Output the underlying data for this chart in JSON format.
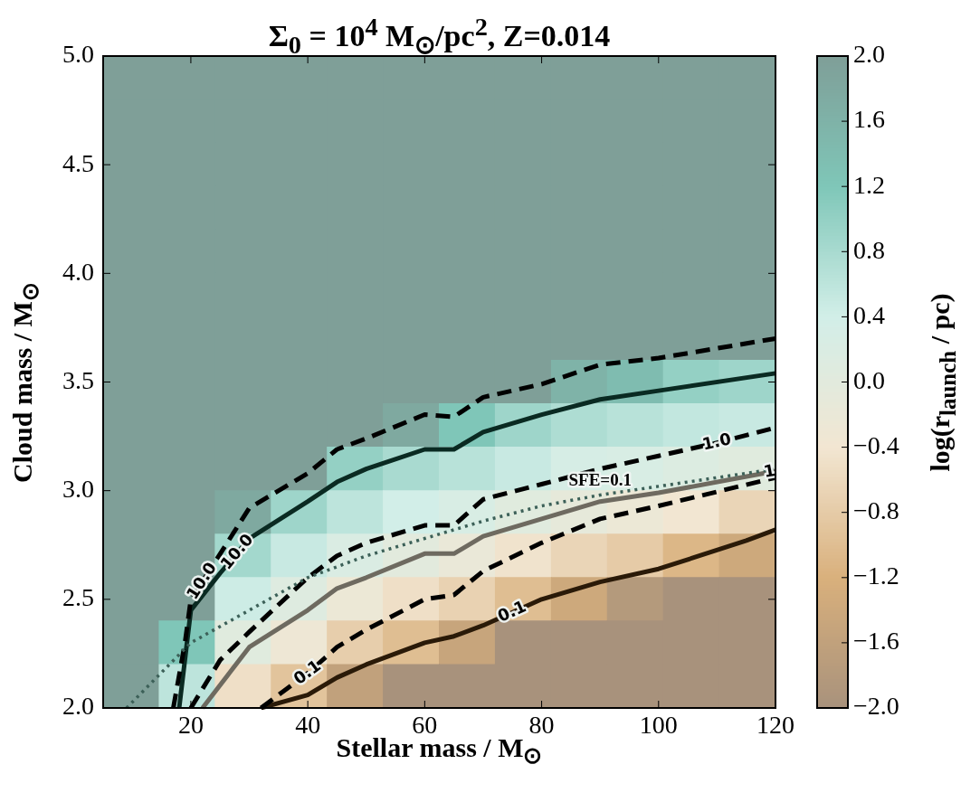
{
  "chart_data": {
    "type": "heatmap",
    "title": "Σ$_{0}$ = 10$^{4}$ M$_{⊙}$/pc$^{2}$, Z=0.014",
    "xlabel": "Stellar mass / M$_{⊙}$",
    "ylabel": "Cloud mass / M$_{⊙}$",
    "clabel": "log(r$_{launch}$ / pc)",
    "xlim": [
      5,
      120
    ],
    "xticks": [
      20,
      40,
      60,
      80,
      100,
      120
    ],
    "ylim": [
      2,
      5
    ],
    "yticks": [
      {
        "value": 2,
        "label": "2.0"
      },
      {
        "value": 2.5,
        "label": "2.5"
      },
      {
        "value": 3,
        "label": "3.0"
      },
      {
        "value": 3.5,
        "label": "3.5"
      },
      {
        "value": 4,
        "label": "4.0"
      },
      {
        "value": 4.5,
        "label": "4.5"
      },
      {
        "value": 5,
        "label": "5.0"
      }
    ],
    "clim": [
      -2,
      2
    ],
    "cticks": [
      {
        "value": -2,
        "label": "−2.0"
      },
      {
        "value": -1.6,
        "label": "−1.6"
      },
      {
        "value": -1.2,
        "label": "−1.2"
      },
      {
        "value": -0.8,
        "label": "−0.8"
      },
      {
        "value": -0.4,
        "label": "−0.4"
      },
      {
        "value": 0,
        "label": "0.0"
      },
      {
        "value": 0.4,
        "label": "0.4"
      },
      {
        "value": 0.8,
        "label": "0.8"
      },
      {
        "value": 1.2,
        "label": "1.2"
      },
      {
        "value": 1.6,
        "label": "1.6"
      },
      {
        "value": 2,
        "label": "2.0"
      }
    ],
    "colors": [
      "#a8927c",
      "#d9b07c",
      "#f2e6d2",
      "#d2eee8",
      "#7fc6b8",
      "#7f9f98"
    ],
    "marker": "none",
    "cells": [
      [
        2,
        2,
        2,
        2,
        2,
        2,
        2,
        2,
        2,
        2,
        2,
        2
      ],
      [
        2,
        2,
        2,
        2,
        2,
        2,
        2,
        2,
        2,
        2,
        2,
        2
      ],
      [
        2,
        2,
        2,
        2,
        2,
        2,
        2,
        2,
        2,
        2,
        2,
        2
      ],
      [
        2,
        2,
        2,
        2,
        2,
        2,
        2,
        2,
        2,
        2,
        2,
        2
      ],
      [
        2,
        2,
        2,
        2,
        2,
        2,
        2,
        2,
        2,
        2,
        2,
        2
      ],
      [
        2,
        2,
        2,
        2,
        2,
        2,
        2,
        2,
        2,
        2,
        2,
        2
      ],
      [
        2,
        2,
        2,
        2,
        2,
        2,
        2,
        2,
        2,
        2,
        2,
        2
      ],
      [
        2,
        2,
        2,
        2,
        2,
        2,
        2,
        2,
        1.6,
        1.4,
        1.0,
        0.9
      ],
      [
        2,
        2,
        2,
        2,
        2,
        1.8,
        1.2,
        0.9,
        0.75,
        0.65,
        0.55,
        0.5
      ],
      [
        2,
        2,
        2,
        2,
        1.0,
        0.8,
        0.65,
        0.5,
        0.3,
        0.25,
        0.15,
        0.05
      ],
      [
        2,
        2,
        1.8,
        0.9,
        0.6,
        0.4,
        0.25,
        0.05,
        -0.1,
        -0.25,
        -0.4,
        -0.65
      ],
      [
        2,
        2,
        0.85,
        0.5,
        0.2,
        0,
        -0.2,
        -0.45,
        -0.65,
        -0.8,
        -1.1,
        -1.4
      ],
      [
        2,
        2,
        0.45,
        0.1,
        -0.25,
        -0.5,
        -0.7,
        -1,
        -1.4,
        -1.8,
        -2,
        -2
      ],
      [
        2,
        1.2,
        0.05,
        -0.3,
        -0.75,
        -1,
        -1.5,
        -2,
        -2,
        -2,
        -2,
        -2
      ],
      [
        2,
        0.6,
        -0.5,
        -0.9,
        -1.6,
        -2,
        -2,
        -2,
        -2,
        -2,
        -2,
        -2
      ]
    ],
    "series": [
      {
        "type": "line",
        "color": "#3c6058",
        "line_style": "dotted",
        "x": [
          9,
          20,
          30,
          40,
          50,
          60,
          70,
          80,
          90,
          100,
          120
        ],
        "values": [
          2.0,
          2.3,
          2.45,
          2.6,
          2.7,
          2.78,
          2.86,
          2.93,
          2.98,
          3.02,
          3.1
        ]
      },
      {
        "type": "line",
        "color": "#000000",
        "line_style": "dashed",
        "x": [
          17,
          19,
          20,
          21,
          30,
          40,
          45,
          50,
          60,
          65,
          70,
          80,
          90,
          100,
          120
        ],
        "values": [
          2.0,
          2.3,
          2.5,
          2.54,
          2.92,
          3.08,
          3.19,
          3.24,
          3.35,
          3.34,
          3.43,
          3.49,
          3.58,
          3.61,
          3.7
        ]
      },
      {
        "type": "line",
        "color": "#0a2a22",
        "line_style": "solid",
        "x": [
          18,
          20,
          25,
          30,
          40,
          45,
          50,
          60,
          65,
          70,
          80,
          90,
          100,
          120
        ],
        "values": [
          2.0,
          2.45,
          2.62,
          2.78,
          2.95,
          3.04,
          3.1,
          3.19,
          3.19,
          3.27,
          3.35,
          3.42,
          3.46,
          3.54
        ]
      },
      {
        "type": "line",
        "color": "#000000",
        "line_style": "dashed",
        "x": [
          20,
          25,
          30,
          40,
          45,
          50,
          60,
          65,
          70,
          80,
          90,
          100,
          110,
          120
        ],
        "values": [
          2.0,
          2.22,
          2.35,
          2.6,
          2.7,
          2.76,
          2.84,
          2.84,
          2.96,
          3.03,
          3.1,
          3.16,
          3.22,
          3.29
        ]
      },
      {
        "type": "line",
        "color": "#6e6a60",
        "line_style": "solid",
        "x": [
          22,
          30,
          40,
          45,
          50,
          60,
          65,
          70,
          80,
          90,
          100,
          119,
          120
        ],
        "values": [
          2.0,
          2.28,
          2.45,
          2.55,
          2.6,
          2.71,
          2.71,
          2.79,
          2.87,
          2.95,
          2.99,
          3.085,
          3.09
        ]
      },
      {
        "type": "line",
        "color": "#000000",
        "line_style": "dashed",
        "x": [
          32,
          40,
          45,
          50,
          60,
          65,
          70,
          80,
          90,
          100,
          120
        ],
        "values": [
          2.0,
          2.16,
          2.28,
          2.36,
          2.5,
          2.52,
          2.63,
          2.76,
          2.87,
          2.93,
          3.06
        ]
      },
      {
        "type": "line",
        "color": "#2a1a08",
        "line_style": "solid",
        "x": [
          32,
          40,
          45,
          50,
          60,
          65,
          70,
          75,
          80,
          90,
          100,
          115,
          120
        ],
        "values": [
          2.0,
          2.06,
          2.14,
          2.2,
          2.3,
          2.33,
          2.38,
          2.44,
          2.5,
          2.58,
          2.64,
          2.77,
          2.82
        ]
      }
    ],
    "annotations": [
      {
        "text": "10.0",
        "x": 22,
        "y": 2.582
      },
      {
        "text": "10.0",
        "x": 28,
        "y": 2.716
      },
      {
        "text": "1.0",
        "x": 110,
        "y": 3.22
      },
      {
        "text": "1",
        "x": 119,
        "y": 3.085
      },
      {
        "text": "SFE=0.1",
        "x": 90,
        "y": 2.98
      },
      {
        "text": "0.1",
        "x": 40,
        "y": 2.16
      },
      {
        "text": "0.1",
        "x": 75,
        "y": 2.44
      }
    ]
  }
}
